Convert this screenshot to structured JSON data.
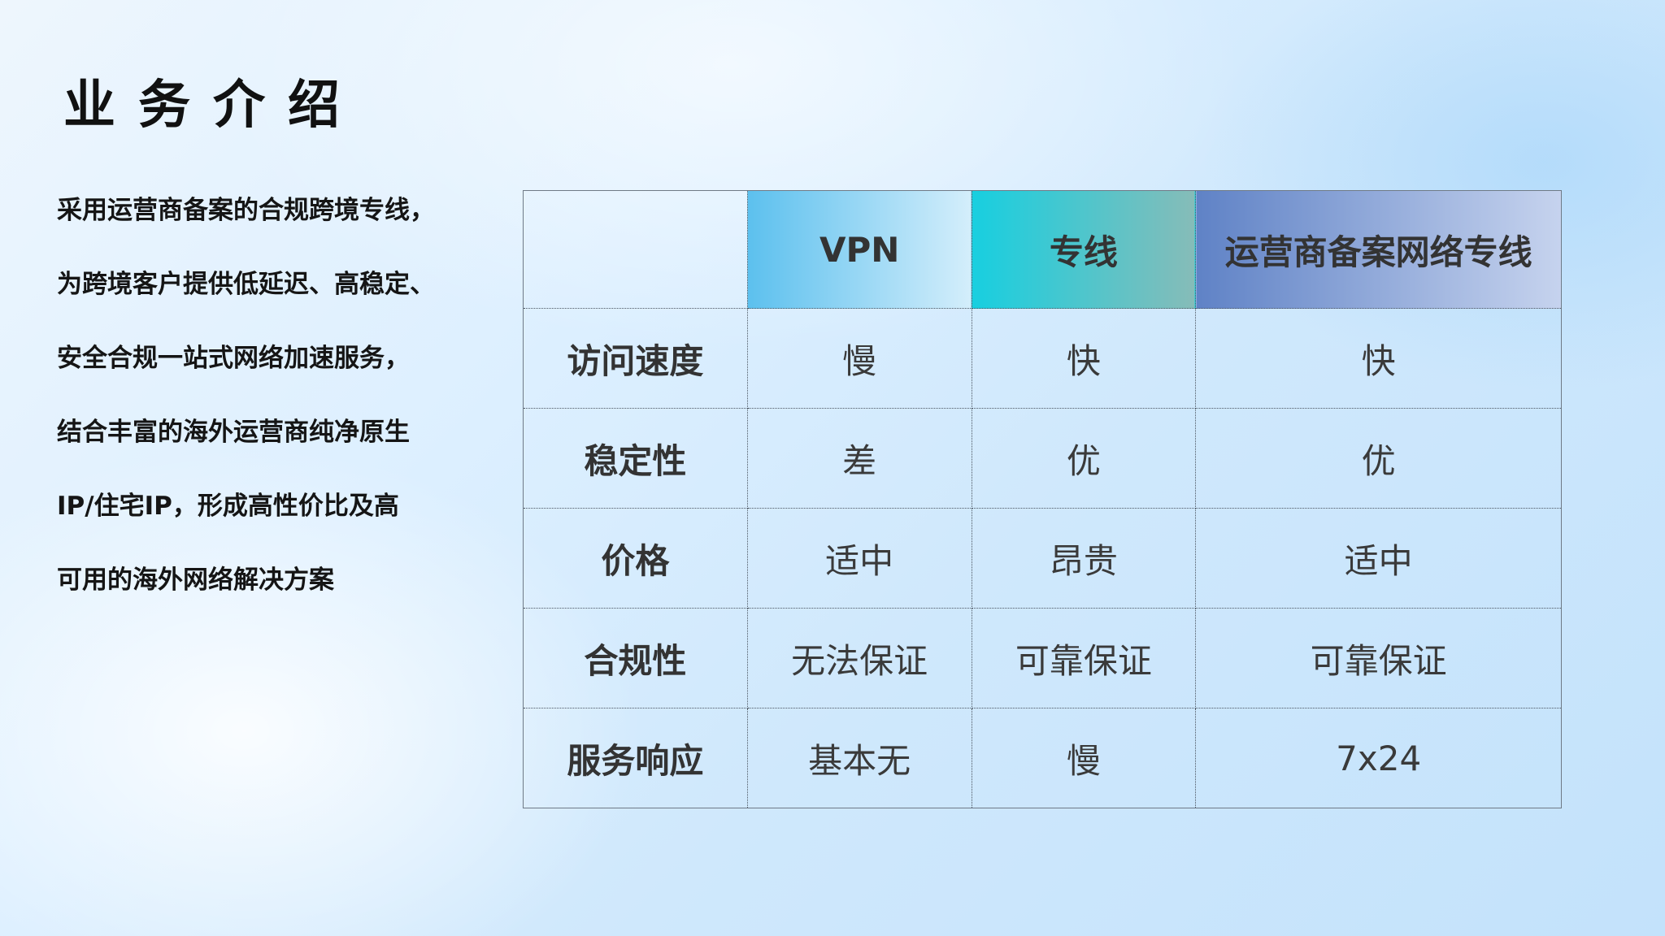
{
  "title": "业务介绍",
  "paragraph_lines": [
    "采用运营商备案的合规跨境专线，",
    "为跨境客户提供低延迟、高稳定、",
    "安全合规一站式网络加速服务，",
    "结合丰富的海外运营商纯净原生",
    "IP/住宅IP，形成高性价比及高",
    "可用的海外网络解决方案"
  ],
  "table": {
    "headers": [
      "",
      "VPN",
      "专线",
      "运营商备案网络专线"
    ],
    "rows": [
      [
        "访问速度",
        "慢",
        "快",
        "快"
      ],
      [
        "稳定性",
        "差",
        "优",
        "优"
      ],
      [
        "价格",
        "适中",
        "昂贵",
        "适中"
      ],
      [
        "合规性",
        "无法保证",
        "可靠保证",
        "可靠保证"
      ],
      [
        "服务响应",
        "基本无",
        "慢",
        "7x24"
      ]
    ]
  },
  "colors": {
    "vpn_header": "#5cc0ee",
    "line_header": "#17cfe0",
    "operator_header": "#5f82c6"
  }
}
